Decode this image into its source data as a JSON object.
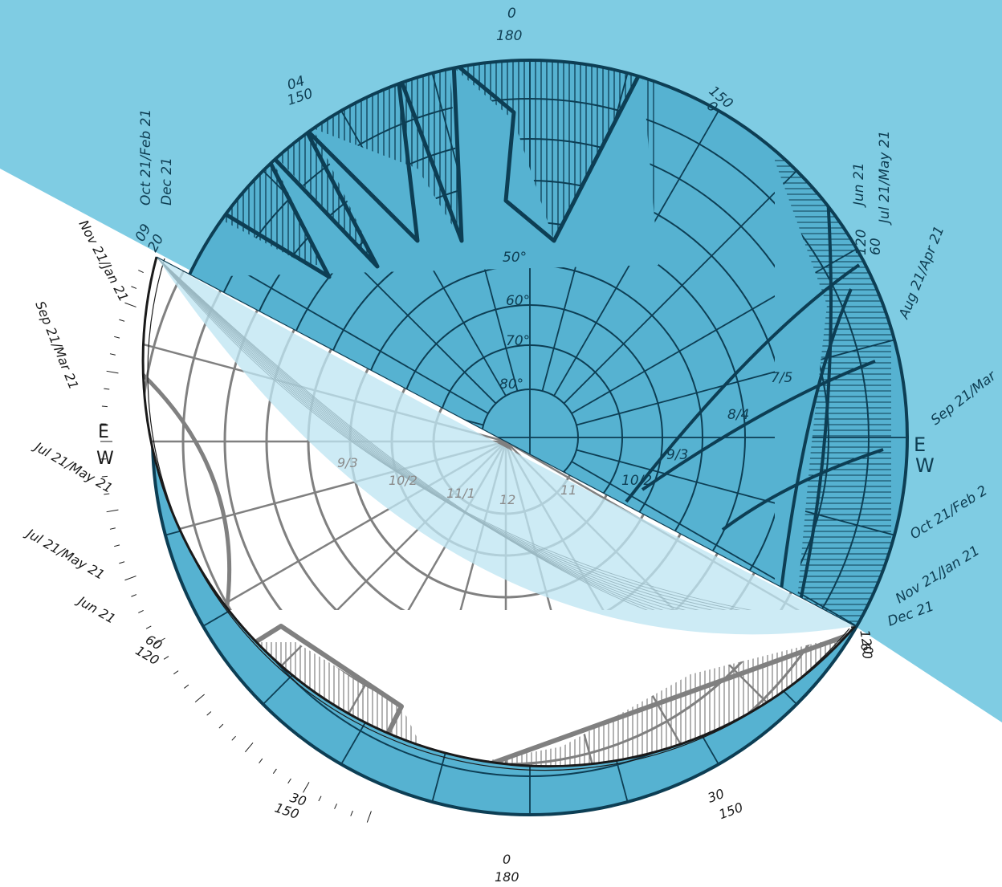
{
  "colors": {
    "sky_blue": "#7fcce3",
    "plan_blue": "#56b2d1",
    "ink_dark": "#0d3e54",
    "ink_black": "#1a1a1a",
    "ink_grey": "#808080",
    "overlay_light": "#bfe6f2"
  },
  "upper_chart": {
    "north_labels": [
      "0",
      "180"
    ],
    "altitude_labels": [
      "50°",
      "60°",
      "70°",
      "80°"
    ],
    "azimuth_labels": {
      "upper_left": [
        "04",
        "150"
      ],
      "upper_right": [
        "150",
        "0"
      ],
      "left_rim": [
        "09",
        "20"
      ],
      "right_rim": [
        "120",
        "60"
      ]
    },
    "date_labels_left": [
      "Oct 21/Feb 21",
      "Dec 21"
    ],
    "date_labels_right": [
      "Jun 21",
      "Jul 21/May 21",
      "Aug 21/Apr 21",
      "Sep 21/Mar",
      "Oct 21/Feb 2",
      "Nov 21/Jan 21",
      "Dec 21"
    ],
    "cardinal_east": "E",
    "cardinal_west": "W",
    "hour_labels": [
      "7/5",
      "8/4",
      "9/3",
      "10/2"
    ]
  },
  "lower_chart": {
    "date_labels_left": [
      "Nov 21/Jan 21",
      "Sep 21/Mar 21",
      "Jul 21/May 21",
      "Jul 21/May 21",
      "Jun 21"
    ],
    "cardinal_left": [
      "E",
      "W"
    ],
    "azimuth_labels": {
      "left_rim": [
        "60",
        "120"
      ],
      "right_rim": [
        "60",
        "120"
      ],
      "bottom_left": [
        "30",
        "150"
      ],
      "bottom_right": [
        "30",
        "150"
      ],
      "bottom": [
        "0",
        "180"
      ]
    },
    "hour_labels": [
      "9/3",
      "10/2",
      "11/1",
      "12",
      "11"
    ]
  }
}
